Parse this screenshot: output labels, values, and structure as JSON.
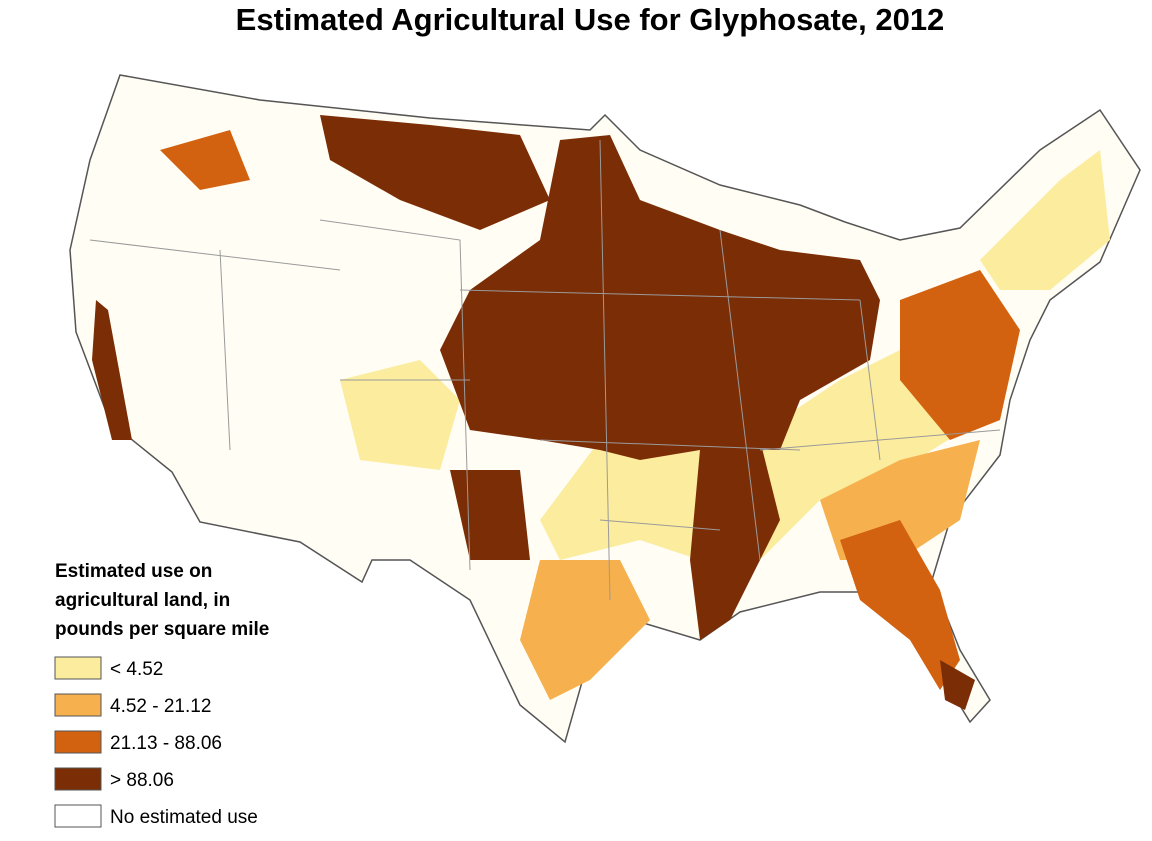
{
  "title": "Estimated Agricultural Use for Glyphosate, 2012",
  "legend": {
    "title": [
      "Estimated use on",
      "agricultural land, in",
      "pounds per square mile"
    ],
    "items": [
      {
        "label": "< 4.52",
        "color": "#fcec9e"
      },
      {
        "label": "4.52 - 21.12",
        "color": "#f6b04e"
      },
      {
        "label": "21.13 - 88.06",
        "color": "#d2620f"
      },
      {
        "label": "> 88.06",
        "color": "#7b2d05"
      },
      {
        "label": "No estimated use",
        "color": "#ffffff"
      }
    ]
  }
}
